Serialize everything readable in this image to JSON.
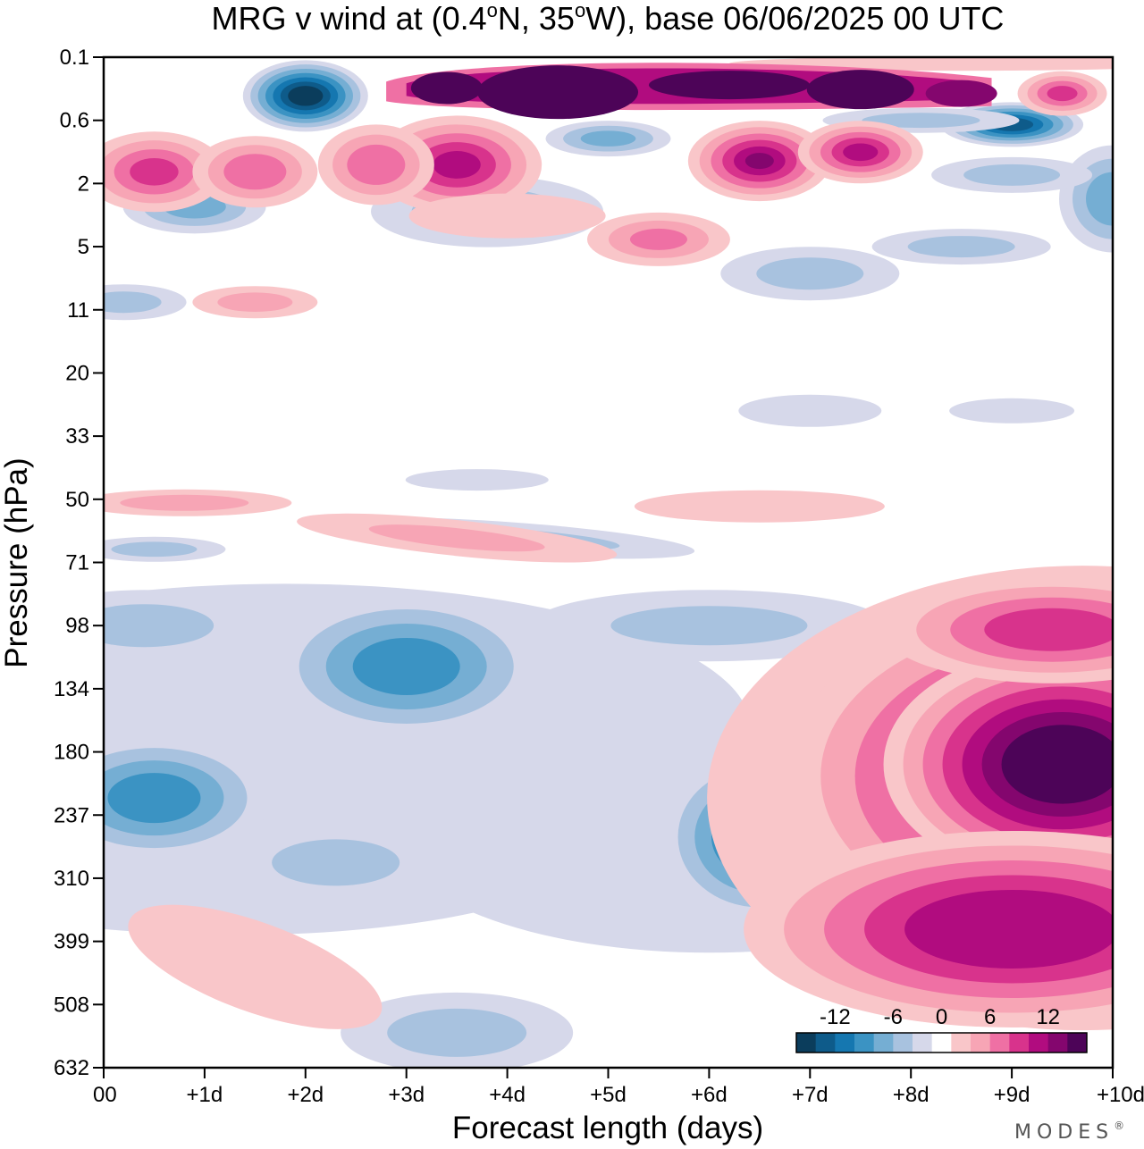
{
  "chart_data": {
    "type": "heatmap",
    "title_parts": {
      "prefix": "MRG v wind at (0.4",
      "deg1": "o",
      "mid": "N, 35",
      "deg2": "o",
      "suffix": "W),  base 06/06/2025  00 UTC"
    },
    "xlabel": "Forecast length (days)",
    "ylabel": "Pressure (hPa)",
    "x_ticks": [
      "00",
      "+1d",
      "+2d",
      "+3d",
      "+4d",
      "+5d",
      "+6d",
      "+7d",
      "+8d",
      "+9d",
      "+10d"
    ],
    "y_ticks": [
      "0.1",
      "0.6",
      "2",
      "5",
      "11",
      "20",
      "33",
      "50",
      "71",
      "98",
      "134",
      "180",
      "237",
      "310",
      "399",
      "508",
      "632"
    ],
    "xlim_days": [
      0,
      10
    ],
    "contour_levels": [
      -14,
      -12,
      -10,
      -8,
      -6,
      -4,
      -2,
      2,
      4,
      6,
      8,
      10,
      12,
      14
    ],
    "colorbar": {
      "labels": [
        "-12",
        "-6",
        "0",
        "6",
        "12"
      ],
      "colors": [
        "#0b3d5c",
        "#0e5b8a",
        "#1577b0",
        "#3b93c3",
        "#75aed3",
        "#a8c2df",
        "#d6d8ea",
        "#ffffff",
        "#f9c6c9",
        "#f7a5b5",
        "#ef70a4",
        "#d8338c",
        "#b10c7f",
        "#84066e",
        "#4d0458"
      ]
    },
    "features": [
      {
        "sign": "negative",
        "peak": -10,
        "x_days": 3.0,
        "pressure_hPa": 120
      },
      {
        "sign": "negative",
        "peak": -10,
        "x_days": 0.5,
        "pressure_hPa": 220
      },
      {
        "sign": "negative",
        "peak": -12,
        "x_days": 6.5,
        "pressure_hPa": 260
      },
      {
        "sign": "negative",
        "peak": -14,
        "x_days": 2.0,
        "pressure_hPa": 0.3
      },
      {
        "sign": "positive",
        "peak": 14,
        "x_days": 9.5,
        "pressure_hPa": 195
      },
      {
        "sign": "positive",
        "peak": 12,
        "x_days": 9.0,
        "pressure_hPa": 390
      },
      {
        "sign": "positive",
        "peak": 10,
        "x_days": 9.5,
        "pressure_hPa": 100
      },
      {
        "sign": "positive",
        "peak": 14,
        "x_days": 4.5,
        "pressure_hPa": 0.3
      },
      {
        "sign": "positive",
        "peak": 14,
        "x_days": 7.5,
        "pressure_hPa": 0.3
      }
    ]
  },
  "branding": {
    "logo_text": "MODES",
    "mark": "®"
  }
}
